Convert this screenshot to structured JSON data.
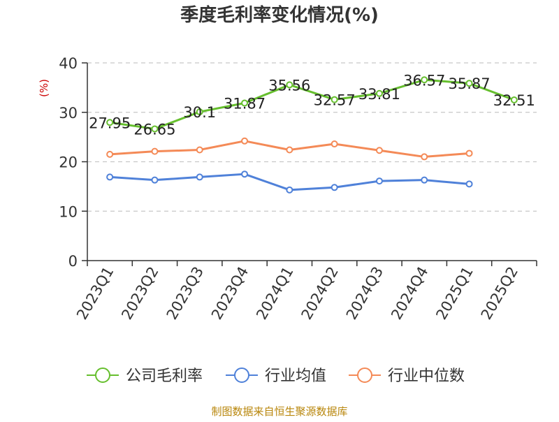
{
  "chart_data": {
    "type": "line",
    "title": "季度毛利率变化情况(%)",
    "ylabel": "(%)",
    "categories": [
      "2023Q1",
      "2023Q2",
      "2023Q3",
      "2023Q4",
      "2024Q1",
      "2024Q2",
      "2024Q3",
      "2024Q4",
      "2025Q1",
      "2025Q2"
    ],
    "ylim": [
      0,
      40
    ],
    "yticks": [
      0,
      10,
      20,
      30,
      40
    ],
    "grid": true,
    "legend_position": "bottom",
    "series": [
      {
        "name": "公司毛利率",
        "color": "#66bf2e",
        "show_labels": true,
        "values": [
          27.95,
          26.65,
          30.1,
          31.87,
          35.56,
          32.57,
          33.81,
          36.57,
          35.87,
          32.51
        ],
        "labels": [
          "27.95",
          "26.65",
          "30.1",
          "31.87",
          "35.56",
          "32.57",
          "33.81",
          "36.57",
          "35.87",
          "32.51"
        ]
      },
      {
        "name": "行业均值",
        "color": "#4f81d9",
        "show_labels": false,
        "values": [
          16.9,
          16.3,
          16.9,
          17.5,
          14.3,
          14.8,
          16.1,
          16.3,
          15.5,
          null
        ]
      },
      {
        "name": "行业中位数",
        "color": "#f48a57",
        "show_labels": false,
        "values": [
          21.5,
          22.1,
          22.4,
          24.2,
          22.4,
          23.6,
          22.3,
          21.0,
          21.7,
          null
        ]
      }
    ]
  },
  "source": "制图数据来自恒生聚源数据库",
  "colors": {
    "title": "#333333",
    "axis": "#333333",
    "ylabel": "#cc0000",
    "grid": "#c8c8c8",
    "source": "#b8860b"
  }
}
